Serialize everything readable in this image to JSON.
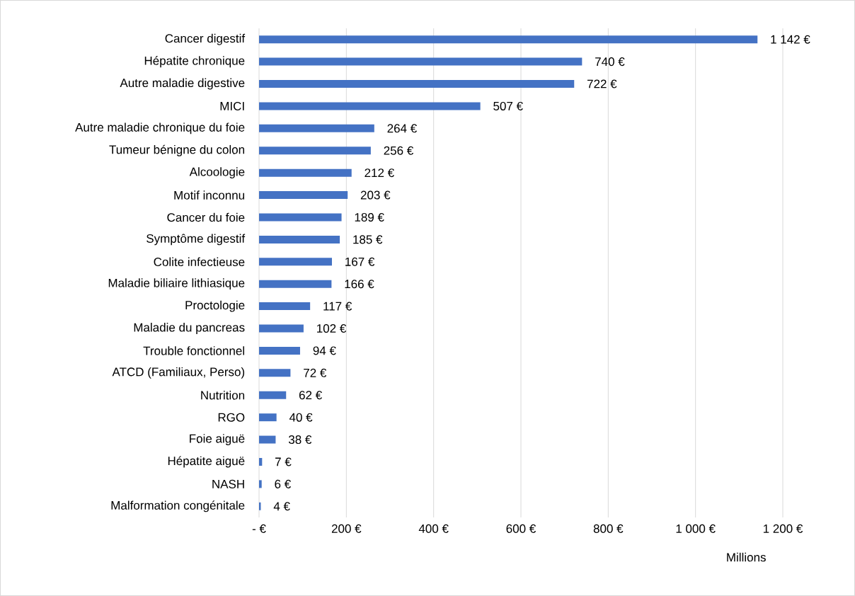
{
  "chart_data": {
    "type": "bar",
    "orientation": "horizontal",
    "xlabel": "Millions",
    "categories": [
      "Cancer digestif",
      "Hépatite chronique",
      "Autre maladie digestive",
      "MICI",
      "Autre maladie chronique du foie",
      "Tumeur bénigne du colon",
      "Alcoologie",
      "Motif inconnu",
      "Cancer du foie",
      "Symptôme digestif",
      "Colite infectieuse",
      "Maladie biliaire lithiasique",
      "Proctologie",
      "Maladie du pancreas",
      "Trouble fonctionnel",
      "ATCD (Familiaux, Perso)",
      "Nutrition",
      "RGO",
      "Foie aiguë",
      "Hépatite aiguë",
      "NASH",
      "Malformation congénitale"
    ],
    "values": [
      1142,
      740,
      722,
      507,
      264,
      256,
      212,
      203,
      189,
      185,
      167,
      166,
      117,
      102,
      94,
      72,
      62,
      40,
      38,
      7,
      6,
      4
    ],
    "value_labels": [
      "1 142 €",
      "740 €",
      "722 €",
      "507 €",
      "264 €",
      "256 €",
      "212 €",
      "203 €",
      "189 €",
      "185 €",
      "167 €",
      "166 €",
      "117 €",
      "102 €",
      "94 €",
      "72 €",
      "62 €",
      "40 €",
      "38 €",
      "7 €",
      "6 €",
      "4 €"
    ],
    "color": "#4472c4",
    "xlim": [
      0,
      1200
    ],
    "xticks": [
      {
        "value": 0,
        "label": "-  €"
      },
      {
        "value": 200,
        "label": "200 €"
      },
      {
        "value": 400,
        "label": "400 €"
      },
      {
        "value": 600,
        "label": "600 €"
      },
      {
        "value": 800,
        "label": "800 €"
      },
      {
        "value": 1000,
        "label": "1 000 €"
      },
      {
        "value": 1200,
        "label": "1 200 €"
      }
    ],
    "grid": "x"
  }
}
